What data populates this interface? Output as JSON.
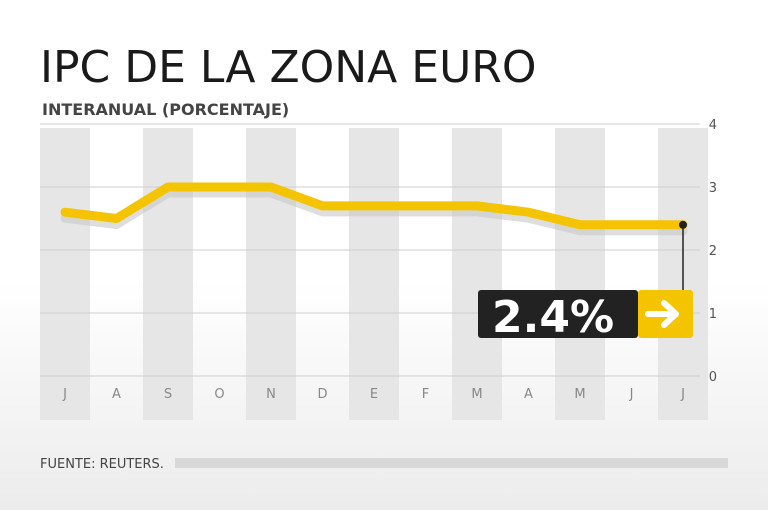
{
  "title": "IPC DE LA ZONA EURO",
  "subtitle": "INTERANUAL (PORCENTAJE)",
  "source": "FUENTE: REUTERS.",
  "colors": {
    "line": "#f5c400",
    "line_shadow": "#c8c8c8",
    "column_band": "#e6e6e6",
    "callout_bg": "#222222",
    "callout_arrow_bg": "#f5c400"
  },
  "callout": {
    "value_label": "2.4%",
    "icon": "arrow-right-icon"
  },
  "chart_data": {
    "type": "line",
    "title": "IPC DE LA ZONA EURO",
    "subtitle": "INTERANUAL (PORCENTAJE)",
    "categories": [
      "J",
      "A",
      "S",
      "O",
      "N",
      "D",
      "E",
      "F",
      "M",
      "A",
      "M",
      "J",
      "J"
    ],
    "series": [
      {
        "values": [
          2.6,
          2.5,
          3.0,
          3.0,
          3.0,
          2.7,
          2.7,
          2.7,
          2.7,
          2.6,
          2.4,
          2.4,
          2.4
        ]
      }
    ],
    "y_ticks": [
      "0",
      "1",
      "2",
      "3",
      "4"
    ],
    "ylim": [
      0,
      4
    ],
    "grid": true,
    "y_axis_side": "right"
  }
}
